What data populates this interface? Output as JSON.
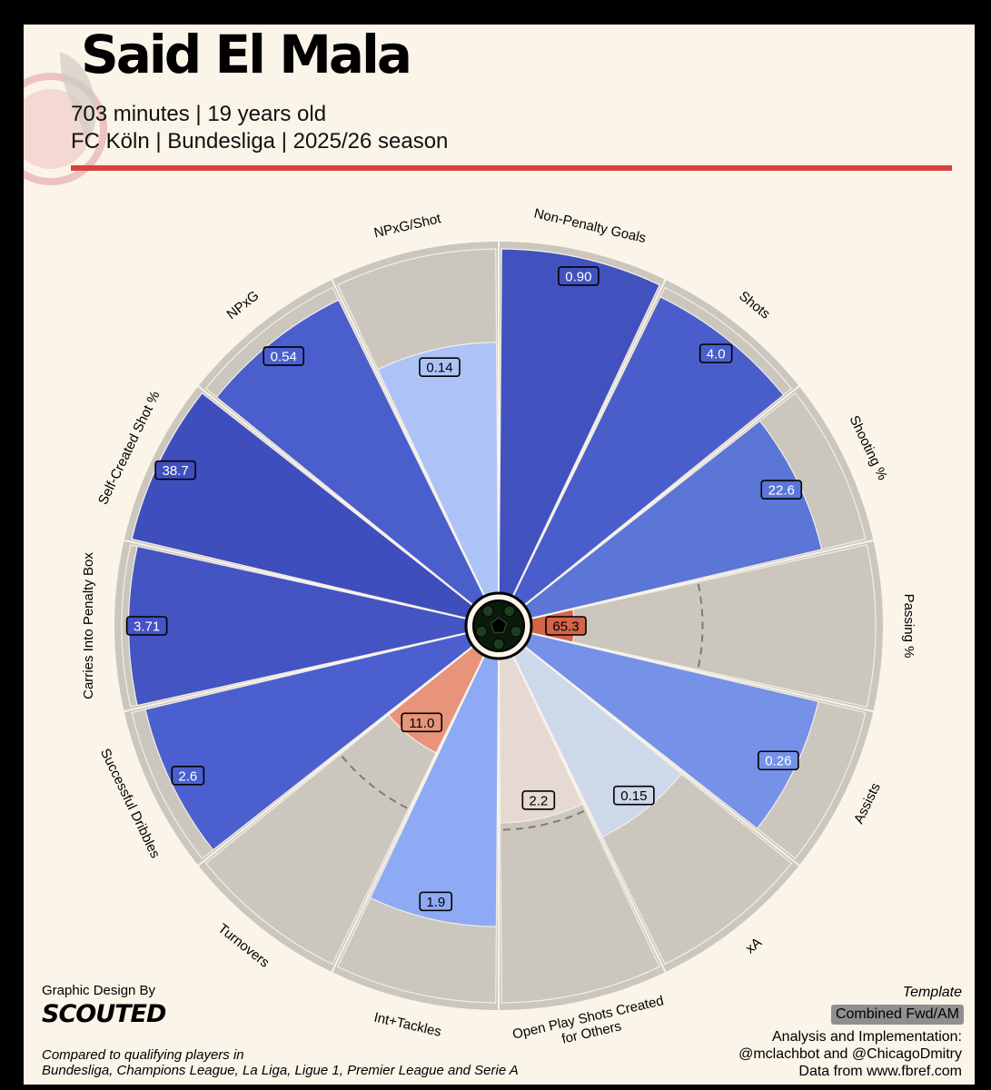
{
  "header": {
    "player_name": "Said El Mala",
    "line1": "703 minutes | 19 years old",
    "line2": "FC Köln | Bundesliga | 2025/26 season"
  },
  "colors": {
    "background": "#fbf4e8",
    "accent": "#d9423a",
    "slice_bg": "#cbc6be"
  },
  "chart_data": {
    "type": "pizza",
    "title": "Said El Mala",
    "percentile_range": [
      0,
      100
    ],
    "categories": [
      {
        "label": "Non-Penalty Goals",
        "value": "0.90",
        "percentile": 100,
        "color": "#4152bf"
      },
      {
        "label": "Shots",
        "value": "4.0",
        "percentile": 97,
        "color": "#4a5ecb"
      },
      {
        "label": "Shooting %",
        "value": "22.6",
        "percentile": 87,
        "color": "#5b76d7"
      },
      {
        "label": "Passing %",
        "value": "65.3",
        "percentile": 13,
        "color": "#d4644a"
      },
      {
        "label": "Assists",
        "value": "0.26",
        "percentile": 86,
        "color": "#7591e8"
      },
      {
        "label": "xA",
        "value": "0.15",
        "percentile": 59,
        "color": "#cdd8ea"
      },
      {
        "label": "Open Play Shots Created\nfor Others",
        "value": "2.2",
        "percentile": 48,
        "color": "#e6d9d1"
      },
      {
        "label": "Int+Tackles",
        "value": "1.9",
        "percentile": 78,
        "color": "#8eaaf5"
      },
      {
        "label": "Turnovers",
        "value": "11.0",
        "percentile": 32,
        "color": "#e8947a"
      },
      {
        "label": "Successful Dribbles",
        "value": "2.6",
        "percentile": 96,
        "color": "#4b60ce"
      },
      {
        "label": "Carries Into Penalty Box",
        "value": "3.71",
        "percentile": 98,
        "color": "#4454c3"
      },
      {
        "label": "Self-Created Shot %",
        "value": "38.7",
        "percentile": 100,
        "color": "#3f4ebd"
      },
      {
        "label": "NPxG",
        "value": "0.54",
        "percentile": 96,
        "color": "#4b5fcc"
      },
      {
        "label": "NPxG/Shot",
        "value": "0.14",
        "percentile": 73,
        "color": "#adc3f8"
      }
    ]
  },
  "footer": {
    "design_label": "Graphic Design By",
    "brand": "SCOUTED",
    "compared_line1": "Compared to qualifying players in",
    "compared_line2": "Bundesliga, Champions League, La Liga, Ligue 1, Premier League and Serie A",
    "template_label": "Template",
    "template_value": "Combined Fwd/AM",
    "credits_line1": "Analysis and Implementation:",
    "credits_line2": "@mclachbot and @ChicagoDmitry",
    "credits_line3": "Data from www.fbref.com"
  }
}
